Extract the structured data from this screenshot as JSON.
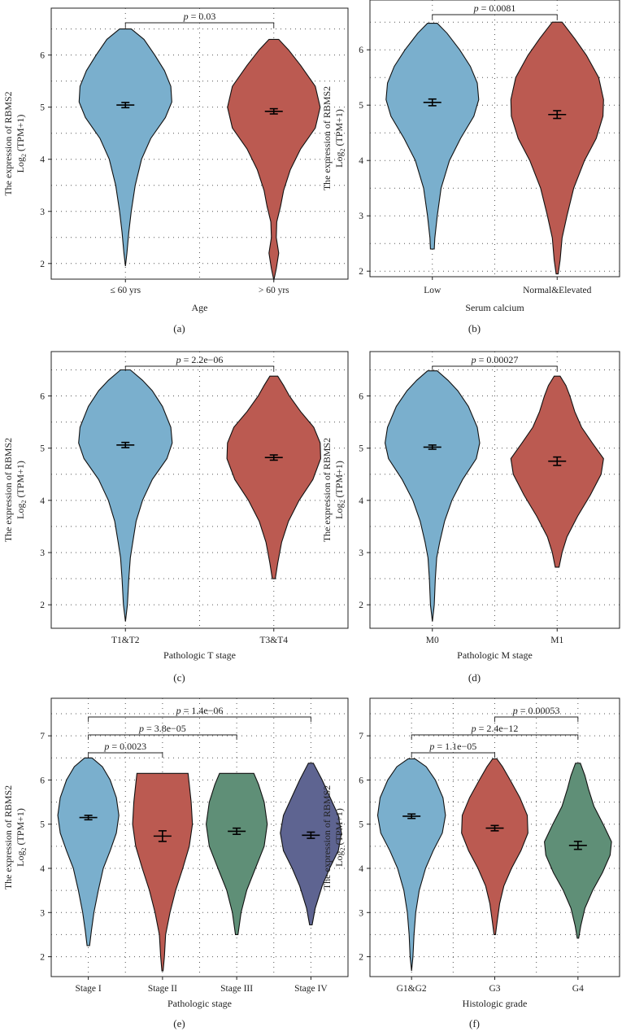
{
  "figure": {
    "y_title_line1": "The expression of RBMS2",
    "y_title_line2": "Log",
    "y_title_sub": "2",
    "y_title_rest": " (TPM+1)"
  },
  "colors": {
    "blue": "#7aafcd",
    "red": "#bb5a51",
    "green": "#5f8f77",
    "navy": "#5e6491"
  },
  "chart_data": [
    {
      "type": "violin",
      "panel": "(a)",
      "xlabel": "Age",
      "ylim": [
        1.7,
        6.9
      ],
      "yticks": [
        2,
        3,
        4,
        5,
        6
      ],
      "series": [
        {
          "name": "≤ 60 yrs",
          "color": "blue",
          "mean": 5.04,
          "err": 0.05,
          "min": 1.95,
          "max": 6.5,
          "profile": [
            [
              1.95,
              0.0
            ],
            [
              2.2,
              0.03
            ],
            [
              2.6,
              0.07
            ],
            [
              3.0,
              0.12
            ],
            [
              3.5,
              0.2
            ],
            [
              4.0,
              0.33
            ],
            [
              4.4,
              0.52
            ],
            [
              4.8,
              0.82
            ],
            [
              5.1,
              0.95
            ],
            [
              5.4,
              0.93
            ],
            [
              5.7,
              0.8
            ],
            [
              6.0,
              0.6
            ],
            [
              6.3,
              0.38
            ],
            [
              6.5,
              0.12
            ]
          ]
        },
        {
          "name": "> 60 yrs",
          "color": "red",
          "mean": 4.92,
          "err": 0.05,
          "min": 1.68,
          "max": 6.3,
          "profile": [
            [
              1.68,
              0.0
            ],
            [
              1.9,
              0.05
            ],
            [
              2.2,
              0.1
            ],
            [
              2.5,
              0.05
            ],
            [
              2.8,
              0.06
            ],
            [
              3.1,
              0.14
            ],
            [
              3.4,
              0.2
            ],
            [
              3.8,
              0.34
            ],
            [
              4.2,
              0.55
            ],
            [
              4.6,
              0.85
            ],
            [
              5.0,
              0.95
            ],
            [
              5.4,
              0.85
            ],
            [
              5.8,
              0.55
            ],
            [
              6.1,
              0.3
            ],
            [
              6.3,
              0.1
            ]
          ]
        }
      ],
      "annotations": [
        {
          "left": 0,
          "right": 1,
          "text": "p = 0.03",
          "level": 0
        }
      ]
    },
    {
      "type": "violin",
      "panel": "(b)",
      "xlabel": "Serum calcium",
      "ylim": [
        1.9,
        6.9
      ],
      "yticks": [
        2,
        3,
        4,
        5,
        6
      ],
      "series": [
        {
          "name": "Low",
          "color": "blue",
          "mean": 5.05,
          "err": 0.06,
          "min": 2.4,
          "max": 6.48,
          "profile": [
            [
              2.4,
              0.04
            ],
            [
              2.6,
              0.05
            ],
            [
              3.0,
              0.1
            ],
            [
              3.5,
              0.18
            ],
            [
              4.0,
              0.35
            ],
            [
              4.4,
              0.58
            ],
            [
              4.8,
              0.85
            ],
            [
              5.1,
              0.95
            ],
            [
              5.4,
              0.92
            ],
            [
              5.7,
              0.78
            ],
            [
              6.0,
              0.56
            ],
            [
              6.3,
              0.3
            ],
            [
              6.48,
              0.1
            ]
          ]
        },
        {
          "name": "Normal&Elevated",
          "color": "red",
          "mean": 4.83,
          "err": 0.07,
          "min": 1.95,
          "max": 6.5,
          "profile": [
            [
              1.95,
              0.02
            ],
            [
              2.2,
              0.06
            ],
            [
              2.6,
              0.1
            ],
            [
              3.0,
              0.2
            ],
            [
              3.5,
              0.34
            ],
            [
              4.0,
              0.56
            ],
            [
              4.4,
              0.8
            ],
            [
              4.8,
              0.94
            ],
            [
              5.1,
              0.95
            ],
            [
              5.5,
              0.85
            ],
            [
              5.9,
              0.6
            ],
            [
              6.2,
              0.36
            ],
            [
              6.5,
              0.1
            ]
          ]
        }
      ],
      "annotations": [
        {
          "left": 0,
          "right": 1,
          "text": "p = 0.0081",
          "level": 0
        }
      ]
    },
    {
      "type": "violin",
      "panel": "(c)",
      "xlabel": "Pathologic T stage",
      "ylim": [
        1.55,
        6.85
      ],
      "yticks": [
        2,
        3,
        4,
        5,
        6
      ],
      "series": [
        {
          "name": "T1&T2",
          "color": "blue",
          "mean": 5.06,
          "err": 0.05,
          "min": 1.68,
          "max": 6.5,
          "profile": [
            [
              1.68,
              0.0
            ],
            [
              2.0,
              0.04
            ],
            [
              2.5,
              0.07
            ],
            [
              2.9,
              0.1
            ],
            [
              3.2,
              0.15
            ],
            [
              3.6,
              0.22
            ],
            [
              4.0,
              0.35
            ],
            [
              4.4,
              0.55
            ],
            [
              4.8,
              0.85
            ],
            [
              5.1,
              0.96
            ],
            [
              5.4,
              0.93
            ],
            [
              5.8,
              0.76
            ],
            [
              6.1,
              0.55
            ],
            [
              6.3,
              0.35
            ],
            [
              6.5,
              0.1
            ]
          ]
        },
        {
          "name": "T3&T4",
          "color": "red",
          "mean": 4.82,
          "err": 0.05,
          "min": 2.5,
          "max": 6.38,
          "profile": [
            [
              2.5,
              0.03
            ],
            [
              2.8,
              0.08
            ],
            [
              3.2,
              0.16
            ],
            [
              3.6,
              0.3
            ],
            [
              4.0,
              0.52
            ],
            [
              4.4,
              0.8
            ],
            [
              4.8,
              0.96
            ],
            [
              5.1,
              0.95
            ],
            [
              5.4,
              0.82
            ],
            [
              5.7,
              0.55
            ],
            [
              6.0,
              0.32
            ],
            [
              6.2,
              0.2
            ],
            [
              6.38,
              0.08
            ]
          ]
        }
      ],
      "annotations": [
        {
          "left": 0,
          "right": 1,
          "text": "p = 2.2e−06",
          "level": 0
        }
      ]
    },
    {
      "type": "violin",
      "panel": "(d)",
      "xlabel": "Pathologic M stage",
      "ylim": [
        1.55,
        6.85
      ],
      "yticks": [
        2,
        3,
        4,
        5,
        6
      ],
      "series": [
        {
          "name": "M0",
          "color": "blue",
          "mean": 5.02,
          "err": 0.04,
          "min": 1.68,
          "max": 6.48,
          "profile": [
            [
              1.68,
              0.0
            ],
            [
              2.0,
              0.04
            ],
            [
              2.5,
              0.06
            ],
            [
              2.9,
              0.09
            ],
            [
              3.2,
              0.15
            ],
            [
              3.6,
              0.25
            ],
            [
              4.0,
              0.4
            ],
            [
              4.4,
              0.62
            ],
            [
              4.8,
              0.9
            ],
            [
              5.1,
              0.97
            ],
            [
              5.4,
              0.92
            ],
            [
              5.8,
              0.74
            ],
            [
              6.1,
              0.52
            ],
            [
              6.3,
              0.32
            ],
            [
              6.48,
              0.1
            ]
          ]
        },
        {
          "name": "M1",
          "color": "red",
          "mean": 4.75,
          "err": 0.08,
          "min": 2.72,
          "max": 6.38,
          "profile": [
            [
              2.72,
              0.04
            ],
            [
              3.0,
              0.1
            ],
            [
              3.3,
              0.2
            ],
            [
              3.7,
              0.42
            ],
            [
              4.1,
              0.68
            ],
            [
              4.5,
              0.9
            ],
            [
              4.8,
              0.95
            ],
            [
              5.1,
              0.72
            ],
            [
              5.4,
              0.5
            ],
            [
              5.7,
              0.36
            ],
            [
              6.0,
              0.26
            ],
            [
              6.2,
              0.18
            ],
            [
              6.38,
              0.06
            ]
          ]
        }
      ],
      "annotations": [
        {
          "left": 0,
          "right": 1,
          "text": "p = 0.00027",
          "level": 0
        }
      ]
    },
    {
      "type": "violin",
      "panel": "(e)",
      "xlabel": "Pathologic stage",
      "ylim": [
        1.55,
        7.85
      ],
      "yticks": [
        2,
        3,
        4,
        5,
        6,
        7
      ],
      "series": [
        {
          "name": "Stage I",
          "color": "blue",
          "mean": 5.15,
          "err": 0.05,
          "min": 2.25,
          "max": 6.5,
          "profile": [
            [
              2.25,
              0.04
            ],
            [
              2.6,
              0.1
            ],
            [
              3.0,
              0.18
            ],
            [
              3.5,
              0.32
            ],
            [
              4.0,
              0.48
            ],
            [
              4.4,
              0.7
            ],
            [
              4.8,
              0.9
            ],
            [
              5.2,
              0.98
            ],
            [
              5.6,
              0.9
            ],
            [
              6.0,
              0.7
            ],
            [
              6.3,
              0.45
            ],
            [
              6.5,
              0.12
            ]
          ]
        },
        {
          "name": "Stage II",
          "color": "red",
          "mean": 4.73,
          "err": 0.12,
          "min": 1.68,
          "max": 6.15,
          "profile": [
            [
              1.68,
              0.02
            ],
            [
              2.0,
              0.06
            ],
            [
              2.5,
              0.1
            ],
            [
              3.0,
              0.24
            ],
            [
              3.5,
              0.42
            ],
            [
              4.0,
              0.65
            ],
            [
              4.5,
              0.86
            ],
            [
              5.0,
              0.96
            ],
            [
              5.5,
              0.92
            ],
            [
              5.9,
              0.86
            ],
            [
              6.15,
              0.82
            ]
          ]
        },
        {
          "name": "Stage III",
          "color": "green",
          "mean": 4.84,
          "err": 0.07,
          "min": 2.5,
          "max": 6.15,
          "profile": [
            [
              2.5,
              0.04
            ],
            [
              3.0,
              0.14
            ],
            [
              3.5,
              0.32
            ],
            [
              4.0,
              0.6
            ],
            [
              4.5,
              0.88
            ],
            [
              5.0,
              0.98
            ],
            [
              5.5,
              0.88
            ],
            [
              5.9,
              0.7
            ],
            [
              6.15,
              0.55
            ]
          ]
        },
        {
          "name": "Stage IV",
          "color": "navy",
          "mean": 4.75,
          "err": 0.07,
          "min": 2.72,
          "max": 6.38,
          "profile": [
            [
              2.72,
              0.04
            ],
            [
              3.1,
              0.14
            ],
            [
              3.6,
              0.36
            ],
            [
              4.0,
              0.6
            ],
            [
              4.4,
              0.88
            ],
            [
              4.8,
              0.98
            ],
            [
              5.2,
              0.88
            ],
            [
              5.6,
              0.62
            ],
            [
              6.0,
              0.36
            ],
            [
              6.38,
              0.08
            ]
          ]
        }
      ],
      "annotations": [
        {
          "left": 0,
          "right": 1,
          "text": "p = 0.0023",
          "level": 0
        },
        {
          "left": 0,
          "right": 2,
          "text": "p = 3.8e−05",
          "level": 1
        },
        {
          "left": 0,
          "right": 3,
          "text": "p = 1.4e−06",
          "level": 2
        }
      ]
    },
    {
      "type": "violin",
      "panel": "(f)",
      "xlabel": "Histologic grade",
      "ylim": [
        1.55,
        7.85
      ],
      "yticks": [
        2,
        3,
        4,
        5,
        6,
        7
      ],
      "series": [
        {
          "name": "G1&G2",
          "color": "blue",
          "mean": 5.18,
          "err": 0.05,
          "min": 1.68,
          "max": 6.48,
          "profile": [
            [
              1.68,
              0.0
            ],
            [
              2.0,
              0.04
            ],
            [
              2.5,
              0.07
            ],
            [
              3.0,
              0.12
            ],
            [
              3.5,
              0.22
            ],
            [
              4.0,
              0.4
            ],
            [
              4.4,
              0.62
            ],
            [
              4.8,
              0.88
            ],
            [
              5.2,
              0.97
            ],
            [
              5.6,
              0.9
            ],
            [
              6.0,
              0.68
            ],
            [
              6.3,
              0.42
            ],
            [
              6.48,
              0.1
            ]
          ]
        },
        {
          "name": "G3",
          "color": "red",
          "mean": 4.91,
          "err": 0.06,
          "min": 2.5,
          "max": 6.48,
          "profile": [
            [
              2.5,
              0.02
            ],
            [
              2.8,
              0.07
            ],
            [
              3.2,
              0.14
            ],
            [
              3.6,
              0.26
            ],
            [
              4.0,
              0.48
            ],
            [
              4.4,
              0.75
            ],
            [
              4.8,
              0.95
            ],
            [
              5.2,
              0.93
            ],
            [
              5.6,
              0.72
            ],
            [
              6.0,
              0.44
            ],
            [
              6.3,
              0.22
            ],
            [
              6.48,
              0.06
            ]
          ]
        },
        {
          "name": "G4",
          "color": "green",
          "mean": 4.52,
          "err": 0.09,
          "min": 2.42,
          "max": 6.38,
          "profile": [
            [
              2.42,
              0.02
            ],
            [
              2.7,
              0.08
            ],
            [
              3.1,
              0.2
            ],
            [
              3.5,
              0.42
            ],
            [
              3.9,
              0.7
            ],
            [
              4.3,
              0.92
            ],
            [
              4.6,
              0.96
            ],
            [
              5.0,
              0.72
            ],
            [
              5.4,
              0.46
            ],
            [
              5.8,
              0.3
            ],
            [
              6.1,
              0.2
            ],
            [
              6.38,
              0.07
            ]
          ]
        }
      ],
      "annotations": [
        {
          "left": 0,
          "right": 1,
          "text": "p = 1.1e−05",
          "level": 0
        },
        {
          "left": 0,
          "right": 2,
          "text": "p = 2.4e−12",
          "level": 1
        },
        {
          "left": 1,
          "right": 2,
          "text": "p = 0.00053",
          "level": 2
        }
      ]
    }
  ]
}
